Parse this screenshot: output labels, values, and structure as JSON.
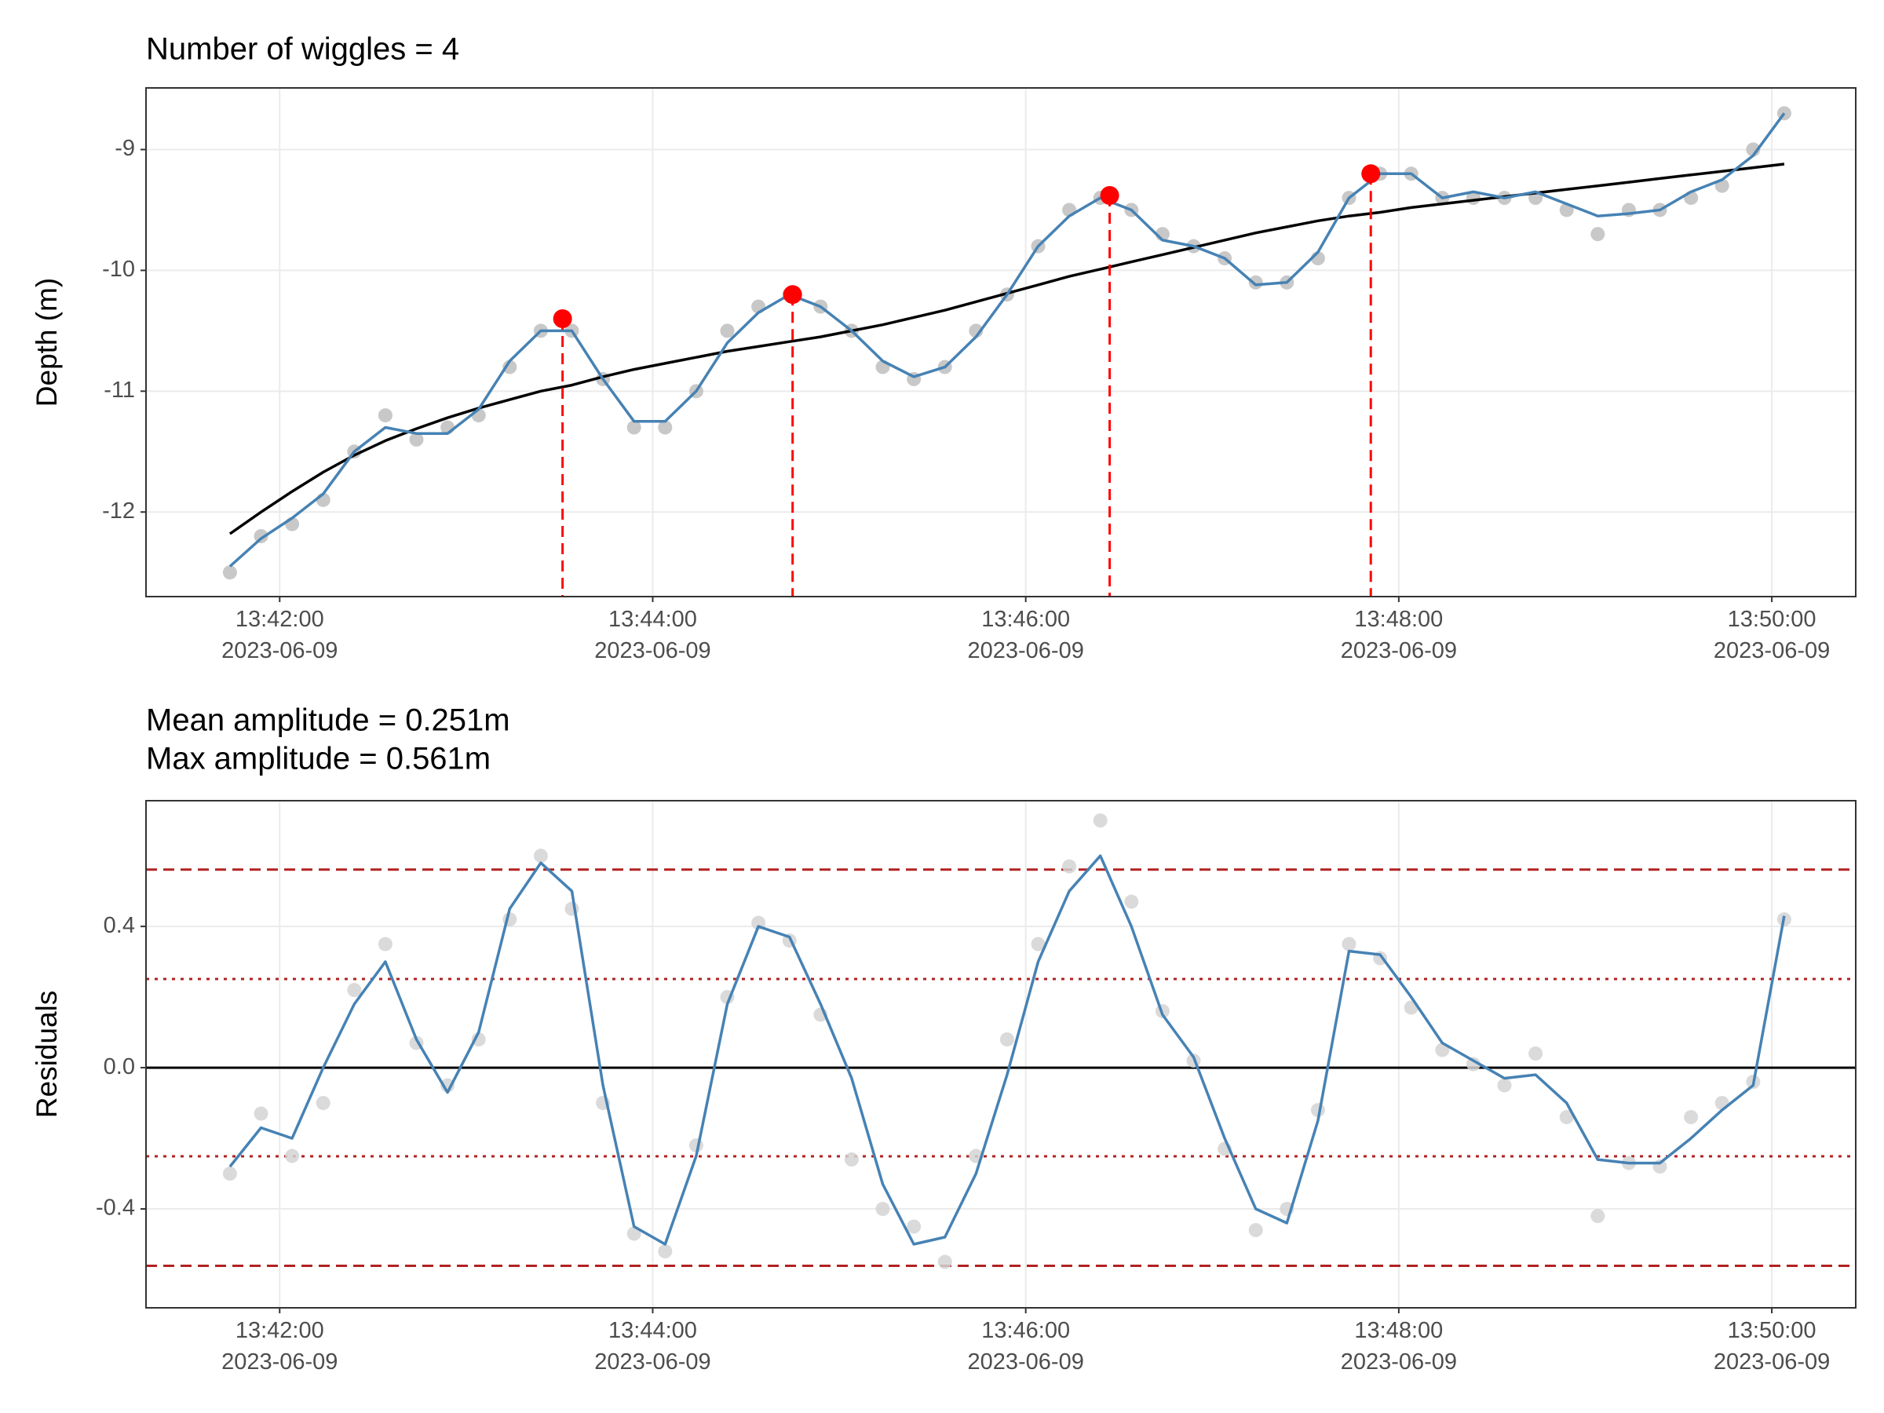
{
  "chart_data": [
    {
      "type": "line",
      "title": "Number of wiggles = 4",
      "y_label": "Depth (m)",
      "xlim": [
        "2023-06-09 13:41:17",
        "2023-06-09 13:50:27"
      ],
      "xticks": [
        {
          "value": "2023-06-09 13:42:00",
          "label": "13:42:00\n2023-06-09"
        },
        {
          "value": "2023-06-09 13:44:00",
          "label": "13:44:00\n2023-06-09"
        },
        {
          "value": "2023-06-09 13:46:00",
          "label": "13:46:00\n2023-06-09"
        },
        {
          "value": "2023-06-09 13:48:00",
          "label": "13:48:00\n2023-06-09"
        },
        {
          "value": "2023-06-09 13:50:00",
          "label": "13:50:00\n2023-06-09"
        }
      ],
      "ylim": [
        -12.7,
        -8.49
      ],
      "yticks": [
        -12,
        -11,
        -10,
        -9
      ],
      "grid": true,
      "x": [
        "2023-06-09 13:41:44",
        "2023-06-09 13:41:54",
        "2023-06-09 13:42:04",
        "2023-06-09 13:42:14",
        "2023-06-09 13:42:24",
        "2023-06-09 13:42:34",
        "2023-06-09 13:42:44",
        "2023-06-09 13:42:54",
        "2023-06-09 13:43:04",
        "2023-06-09 13:43:14",
        "2023-06-09 13:43:24",
        "2023-06-09 13:43:34",
        "2023-06-09 13:43:44",
        "2023-06-09 13:43:54",
        "2023-06-09 13:44:04",
        "2023-06-09 13:44:14",
        "2023-06-09 13:44:24",
        "2023-06-09 13:44:34",
        "2023-06-09 13:44:44",
        "2023-06-09 13:44:54",
        "2023-06-09 13:45:04",
        "2023-06-09 13:45:14",
        "2023-06-09 13:45:24",
        "2023-06-09 13:45:34",
        "2023-06-09 13:45:44",
        "2023-06-09 13:45:54",
        "2023-06-09 13:46:04",
        "2023-06-09 13:46:14",
        "2023-06-09 13:46:24",
        "2023-06-09 13:46:34",
        "2023-06-09 13:46:44",
        "2023-06-09 13:46:54",
        "2023-06-09 13:47:04",
        "2023-06-09 13:47:14",
        "2023-06-09 13:47:24",
        "2023-06-09 13:47:34",
        "2023-06-09 13:47:44",
        "2023-06-09 13:47:54",
        "2023-06-09 13:48:04",
        "2023-06-09 13:48:14",
        "2023-06-09 13:48:24",
        "2023-06-09 13:48:34",
        "2023-06-09 13:48:44",
        "2023-06-09 13:48:54",
        "2023-06-09 13:49:04",
        "2023-06-09 13:49:14",
        "2023-06-09 13:49:24",
        "2023-06-09 13:49:34",
        "2023-06-09 13:49:44",
        "2023-06-09 13:49:54",
        "2023-06-09 13:50:04"
      ],
      "series": [
        {
          "style": "points",
          "color": "#bebebe",
          "values": [
            -12.5,
            -12.2,
            -12.1,
            -11.9,
            -11.5,
            -11.2,
            -11.4,
            -11.3,
            -11.2,
            -10.8,
            -10.5,
            -10.5,
            -10.9,
            -11.3,
            -11.3,
            -11.0,
            -10.5,
            -10.3,
            -10.2,
            -10.3,
            -10.5,
            -10.8,
            -10.9,
            -10.8,
            -10.5,
            -10.2,
            -9.8,
            -9.5,
            -9.4,
            -9.5,
            -9.7,
            -9.8,
            -9.9,
            -10.1,
            -10.1,
            -9.9,
            -9.4,
            -9.2,
            -9.2,
            -9.4,
            -9.4,
            -9.4,
            -9.4,
            -9.5,
            -9.7,
            -9.5,
            -9.5,
            -9.4,
            -9.3,
            -9.0,
            -8.7
          ]
        },
        {
          "style": "line",
          "color": "#000000",
          "values": [
            -12.18,
            -12.0,
            -11.83,
            -11.67,
            -11.53,
            -11.41,
            -11.31,
            -11.22,
            -11.14,
            -11.07,
            -11.0,
            -10.95,
            -10.88,
            -10.82,
            -10.77,
            -10.72,
            -10.67,
            -10.63,
            -10.59,
            -10.55,
            -10.5,
            -10.45,
            -10.39,
            -10.33,
            -10.26,
            -10.19,
            -10.12,
            -10.05,
            -9.99,
            -9.93,
            -9.87,
            -9.81,
            -9.75,
            -9.69,
            -9.64,
            -9.59,
            -9.55,
            -9.52,
            -9.48,
            -9.45,
            -9.42,
            -9.39,
            -9.36,
            -9.33,
            -9.3,
            -9.27,
            -9.24,
            -9.21,
            -9.18,
            -9.15,
            -9.12
          ]
        },
        {
          "style": "line",
          "color": "#4682b4",
          "values": [
            -12.45,
            -12.22,
            -12.05,
            -11.85,
            -11.5,
            -11.3,
            -11.35,
            -11.35,
            -11.15,
            -10.75,
            -10.5,
            -10.5,
            -10.9,
            -11.25,
            -11.25,
            -11.0,
            -10.6,
            -10.35,
            -10.2,
            -10.3,
            -10.5,
            -10.75,
            -10.88,
            -10.8,
            -10.55,
            -10.2,
            -9.8,
            -9.55,
            -9.4,
            -9.5,
            -9.75,
            -9.8,
            -9.9,
            -10.12,
            -10.1,
            -9.85,
            -9.4,
            -9.2,
            -9.2,
            -9.4,
            -9.35,
            -9.4,
            -9.35,
            -9.45,
            -9.55,
            -9.53,
            -9.5,
            -9.35,
            -9.25,
            -9.05,
            -8.7
          ]
        }
      ],
      "peaks": {
        "color": "#ff0000",
        "x": [
          "2023-06-09 13:43:31",
          "2023-06-09 13:44:45",
          "2023-06-09 13:46:27",
          "2023-06-09 13:47:51"
        ],
        "values": [
          -10.4,
          -10.2,
          -9.38,
          -9.2
        ]
      }
    },
    {
      "type": "line",
      "title": "Mean amplitude = 0.251m",
      "subtitle": "Max amplitude = 0.561m",
      "y_label": "Residuals",
      "xlim": [
        "2023-06-09 13:41:17",
        "2023-06-09 13:50:27"
      ],
      "xticks": [
        {
          "value": "2023-06-09 13:42:00",
          "label": "13:42:00\n2023-06-09"
        },
        {
          "value": "2023-06-09 13:44:00",
          "label": "13:44:00\n2023-06-09"
        },
        {
          "value": "2023-06-09 13:46:00",
          "label": "13:46:00\n2023-06-09"
        },
        {
          "value": "2023-06-09 13:48:00",
          "label": "13:48:00\n2023-06-09"
        },
        {
          "value": "2023-06-09 13:50:00",
          "label": "13:50:00\n2023-06-09"
        }
      ],
      "ylim": [
        -0.68,
        0.756
      ],
      "yticks": [
        -0.4,
        {
          "value": 0,
          "label": "0.0"
        },
        0.4
      ],
      "grid": true,
      "hlines": [
        {
          "value": 0,
          "style": "solid",
          "color": "#000000"
        },
        {
          "value": 0.561,
          "style": "dashed",
          "color": "#b22222"
        },
        {
          "value": -0.561,
          "style": "dashed",
          "color": "#b22222"
        },
        {
          "value": 0.251,
          "style": "dotted",
          "color": "#b22222"
        },
        {
          "value": -0.251,
          "style": "dotted",
          "color": "#b22222"
        }
      ],
      "x": [
        "2023-06-09 13:41:44",
        "2023-06-09 13:41:54",
        "2023-06-09 13:42:04",
        "2023-06-09 13:42:14",
        "2023-06-09 13:42:24",
        "2023-06-09 13:42:34",
        "2023-06-09 13:42:44",
        "2023-06-09 13:42:54",
        "2023-06-09 13:43:04",
        "2023-06-09 13:43:14",
        "2023-06-09 13:43:24",
        "2023-06-09 13:43:34",
        "2023-06-09 13:43:44",
        "2023-06-09 13:43:54",
        "2023-06-09 13:44:04",
        "2023-06-09 13:44:14",
        "2023-06-09 13:44:24",
        "2023-06-09 13:44:34",
        "2023-06-09 13:44:44",
        "2023-06-09 13:44:54",
        "2023-06-09 13:45:04",
        "2023-06-09 13:45:14",
        "2023-06-09 13:45:24",
        "2023-06-09 13:45:34",
        "2023-06-09 13:45:44",
        "2023-06-09 13:45:54",
        "2023-06-09 13:46:04",
        "2023-06-09 13:46:14",
        "2023-06-09 13:46:24",
        "2023-06-09 13:46:34",
        "2023-06-09 13:46:44",
        "2023-06-09 13:46:54",
        "2023-06-09 13:47:04",
        "2023-06-09 13:47:14",
        "2023-06-09 13:47:24",
        "2023-06-09 13:47:34",
        "2023-06-09 13:47:44",
        "2023-06-09 13:47:54",
        "2023-06-09 13:48:04",
        "2023-06-09 13:48:14",
        "2023-06-09 13:48:24",
        "2023-06-09 13:48:34",
        "2023-06-09 13:48:44",
        "2023-06-09 13:48:54",
        "2023-06-09 13:49:04",
        "2023-06-09 13:49:14",
        "2023-06-09 13:49:24",
        "2023-06-09 13:49:34",
        "2023-06-09 13:49:44",
        "2023-06-09 13:49:54",
        "2023-06-09 13:50:04"
      ],
      "series": [
        {
          "style": "points",
          "color": "#d3d3d3",
          "values": [
            -0.3,
            -0.13,
            -0.25,
            -0.1,
            0.22,
            0.35,
            0.07,
            -0.05,
            0.08,
            0.42,
            0.6,
            0.45,
            -0.1,
            -0.47,
            -0.52,
            -0.22,
            0.2,
            0.41,
            0.36,
            0.15,
            -0.26,
            -0.4,
            -0.45,
            -0.55,
            -0.25,
            0.08,
            0.35,
            0.57,
            0.7,
            0.47,
            0.16,
            0.02,
            -0.23,
            -0.46,
            -0.4,
            -0.12,
            0.35,
            0.31,
            0.17,
            0.05,
            0.01,
            -0.05,
            0.04,
            -0.14,
            -0.42,
            -0.27,
            -0.28,
            -0.14,
            -0.1,
            -0.04,
            0.42
          ]
        },
        {
          "style": "line",
          "color": "#4682b4",
          "values": [
            -0.28,
            -0.17,
            -0.2,
            0.0,
            0.18,
            0.3,
            0.08,
            -0.07,
            0.1,
            0.45,
            0.58,
            0.5,
            -0.05,
            -0.45,
            -0.5,
            -0.25,
            0.18,
            0.4,
            0.37,
            0.18,
            -0.03,
            -0.33,
            -0.5,
            -0.48,
            -0.3,
            -0.02,
            0.3,
            0.5,
            0.6,
            0.4,
            0.15,
            0.03,
            -0.2,
            -0.4,
            -0.44,
            -0.15,
            0.33,
            0.32,
            0.2,
            0.07,
            0.02,
            -0.03,
            -0.02,
            -0.1,
            -0.26,
            -0.27,
            -0.27,
            -0.2,
            -0.12,
            -0.05,
            0.43
          ]
        }
      ]
    }
  ]
}
